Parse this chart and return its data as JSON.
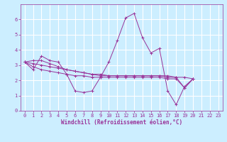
{
  "xlabel": "Windchill (Refroidissement éolien,°C)",
  "background_color": "#cceeff",
  "grid_color": "#ffffff",
  "line_color": "#993399",
  "xlim": [
    -0.5,
    23.5
  ],
  "ylim": [
    0,
    7
  ],
  "xticks": [
    0,
    1,
    2,
    3,
    4,
    5,
    6,
    7,
    8,
    9,
    10,
    11,
    12,
    13,
    14,
    15,
    16,
    17,
    18,
    19,
    20,
    21,
    22,
    23
  ],
  "yticks": [
    0,
    1,
    2,
    3,
    4,
    5,
    6
  ],
  "series": [
    {
      "x": [
        0,
        1,
        2,
        3,
        4,
        5,
        6,
        7,
        8,
        9,
        10,
        11,
        12,
        13,
        14,
        15,
        16,
        17,
        18,
        19,
        20
      ],
      "y": [
        3.2,
        2.7,
        3.6,
        3.3,
        3.2,
        2.4,
        1.3,
        1.2,
        1.3,
        2.2,
        3.2,
        4.6,
        6.1,
        6.4,
        4.8,
        3.8,
        4.1,
        1.3,
        0.4,
        1.6,
        2.1
      ]
    },
    {
      "x": [
        0,
        1,
        2,
        3,
        4,
        5,
        6,
        7,
        8,
        9,
        10,
        11,
        12,
        13,
        14,
        15,
        16,
        17,
        18,
        19,
        20
      ],
      "y": [
        3.2,
        3.3,
        3.3,
        3.1,
        2.9,
        2.7,
        2.6,
        2.5,
        2.4,
        2.4,
        2.3,
        2.3,
        2.3,
        2.3,
        2.3,
        2.3,
        2.3,
        2.3,
        2.2,
        2.2,
        2.1
      ]
    },
    {
      "x": [
        0,
        1,
        2,
        3,
        4,
        5,
        6,
        7,
        8,
        9,
        10,
        11,
        12,
        13,
        14,
        15,
        16,
        17,
        18,
        19,
        20
      ],
      "y": [
        3.2,
        3.1,
        3.0,
        2.9,
        2.8,
        2.7,
        2.6,
        2.5,
        2.4,
        2.3,
        2.3,
        2.3,
        2.3,
        2.3,
        2.3,
        2.3,
        2.3,
        2.2,
        2.2,
        1.5,
        2.1
      ]
    },
    {
      "x": [
        0,
        1,
        2,
        3,
        4,
        5,
        6,
        7,
        8,
        9,
        10,
        11,
        12,
        13,
        14,
        15,
        16,
        17,
        18,
        19,
        20
      ],
      "y": [
        3.2,
        2.9,
        2.7,
        2.6,
        2.5,
        2.4,
        2.3,
        2.3,
        2.2,
        2.2,
        2.2,
        2.2,
        2.2,
        2.2,
        2.2,
        2.2,
        2.2,
        2.1,
        2.1,
        1.5,
        2.1
      ]
    }
  ]
}
